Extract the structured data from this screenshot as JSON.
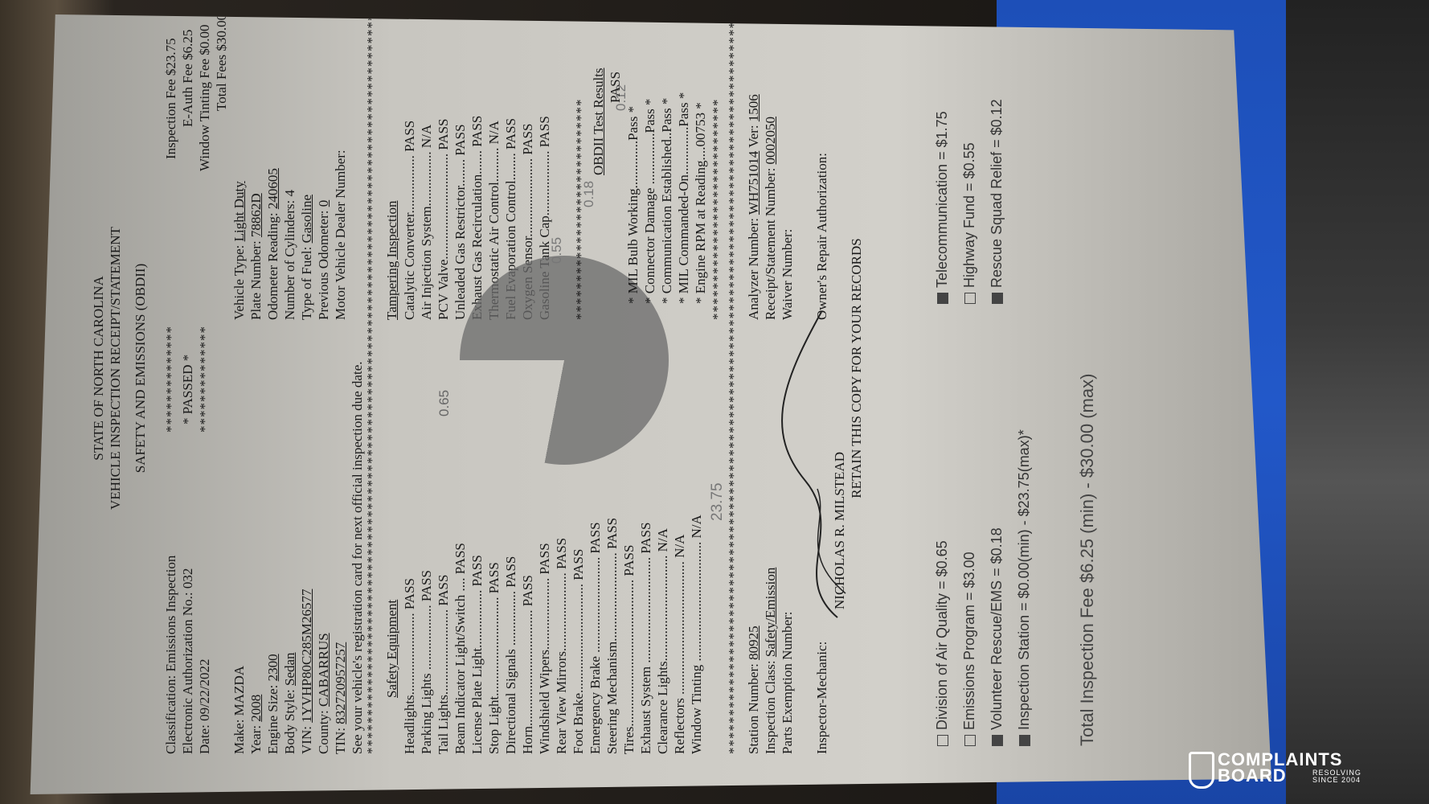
{
  "header": {
    "state": "STATE OF NORTH CAROLINA",
    "receipt_title": "VEHICLE INSPECTION RECEIPT/STATEMENT",
    "program": "SAFETY AND EMISSIONS (OBDII)"
  },
  "classification": "Classification: Emissions Inspection",
  "auth_no": "Electronic Authorization No.: 032",
  "date": "Date: 09/22/2022",
  "passed": "* PASSED *",
  "stars_line": "**************",
  "fees": {
    "inspection": "Inspection Fee $23.75",
    "eauth": "E-Auth Fee $6.25",
    "window": "Window Tinting Fee $0.00",
    "total": "Total Fees $30.00"
  },
  "vehicle": {
    "make": "Make: MAZDA",
    "year_label": "Year:",
    "year": "2008",
    "engine_label": "Engine Size:",
    "engine": "2300",
    "body_label": "Body Style:",
    "body": "Sedan",
    "vin_label": "VIN:",
    "vin": "1YVHP80C285M26577",
    "county_label": "County:",
    "county": "CABARRUS",
    "tin_label": "TIN:",
    "tin": "832720957257",
    "type_label": "Vehicle Type:",
    "type": "Light Duty",
    "plate_label": "Plate Number:",
    "plate": "78862D",
    "odo_label": "Odometer Reading:",
    "odo": "240605",
    "cyl": "Number of Cylinders: 4",
    "fuel_label": "Type of Fuel:",
    "fuel": "Gasoline",
    "prev_odo_label": "Previous Odometer:",
    "prev_odo": "0",
    "dealer": "Motor Vehicle Dealer Number:"
  },
  "notice": "See your vehicle's registration card for next official inspection due date.",
  "safety_title": "Safety Equipment",
  "safety": [
    {
      "item": "Headlights........................",
      "result": "PASS"
    },
    {
      "item": "Parking Lights ...................",
      "result": "PASS"
    },
    {
      "item": "Tail Lights.........................",
      "result": "PASS"
    },
    {
      "item": "Beam Indicator Light/Switch ....",
      "result": "PASS"
    },
    {
      "item": "License Plate Light.................",
      "result": "PASS"
    },
    {
      "item": "Stop Light.............................",
      "result": "PASS"
    },
    {
      "item": "Directional Signals ................",
      "result": "PASS"
    },
    {
      "item": "Horn..................................",
      "result": "PASS"
    },
    {
      "item": "Windshield Wipers.....................",
      "result": "PASS"
    },
    {
      "item": "Rear View Mirrors.......................",
      "result": "PASS"
    },
    {
      "item": "Foot Brake................................",
      "result": "PASS"
    },
    {
      "item": "Emergency Brake ............................",
      "result": "PASS"
    },
    {
      "item": "Steering Mechanism..........................",
      "result": "PASS"
    },
    {
      "item": "Tires...........................................",
      "result": "PASS"
    },
    {
      "item": "Exhaust System ...............................",
      "result": "PASS"
    },
    {
      "item": "Clearance Lights...............................",
      "result": "N/A"
    },
    {
      "item": "Reflectors .......................................",
      "result": "N/A"
    },
    {
      "item": "Window Tinting ...................................",
      "result": "N/A"
    }
  ],
  "tamper_title": "Tampering Inspection",
  "tamper": [
    {
      "item": "Catalytic Converter.................",
      "result": "PASS"
    },
    {
      "item": "Air Injection System................",
      "result": "N/A"
    },
    {
      "item": "PCV Valve...............................",
      "result": "PASS"
    },
    {
      "item": "Unleaded Gas Restrictor........",
      "result": "PASS"
    },
    {
      "item": "Exhaust Gas Recirculation.......",
      "result": "PASS"
    },
    {
      "item": "Thermostatic Air Control..........",
      "result": "N/A"
    },
    {
      "item": "Fuel Evaporation Control........",
      "result": "PASS"
    },
    {
      "item": "Oxygen Sensor.......................",
      "result": "PASS"
    },
    {
      "item": "Gasoline Tank Cap...................",
      "result": "PASS"
    }
  ],
  "obd_title": "OBDII Test Results",
  "obd_result": "PASS",
  "obd": [
    "MIL Bulb Working..............Pass",
    "Connector Damage ...............Pass",
    "Communication Established..Pass",
    "MIL Commanded-On..............Pass",
    "Engine RPM at Reading....00753"
  ],
  "pie_labels": {
    "a": "0.65",
    "b": "0.55",
    "c": "0.18",
    "d": "0.12",
    "e": "23.75"
  },
  "station": {
    "station_label": "Station Number:",
    "station": "80925",
    "class_label": "Inspection Class:",
    "class": "Safety/Emission",
    "parts": "Parts Exemption Number:",
    "analyzer_label": "Analyzer Number:",
    "analyzer": "WH751014",
    "ver_label": "Ver:",
    "ver": "1506",
    "receipt_label": "Receipt/Statement Number:",
    "receipt": "0002050",
    "waiver": "Waiver Number:",
    "mechanic": "Inspector-Mechanic:",
    "owner": "Owner's Repair Authorization:",
    "name": "NICHOLAS R. MILSTEAD",
    "retain": "RETAIN THIS COPY FOR YOUR RECORDS"
  },
  "breakdown": [
    {
      "label": "Division of Air Quality = $0.65",
      "checked": false
    },
    {
      "label": "Emissions Program = $3.00",
      "checked": false
    },
    {
      "label": "Volunteer Rescue/EMS = $0.18",
      "checked": true
    },
    {
      "label": "Inspection Station = $0.00(min) - $23.75(max)*",
      "checked": true
    },
    {
      "label": "Telecommunication = $1.75",
      "checked": true
    },
    {
      "label": "Highway Fund = $0.55",
      "checked": false
    },
    {
      "label": "Rescue Squad Relief = $0.12",
      "checked": true
    }
  ],
  "total_fee": "Total Inspection Fee $6.25 (min) - $30.00 (max)",
  "logo": {
    "line1": "COMPLAINTS",
    "line2": "BOARD",
    "line3a": "RESOLVING",
    "line3b": "SINCE 2004"
  }
}
